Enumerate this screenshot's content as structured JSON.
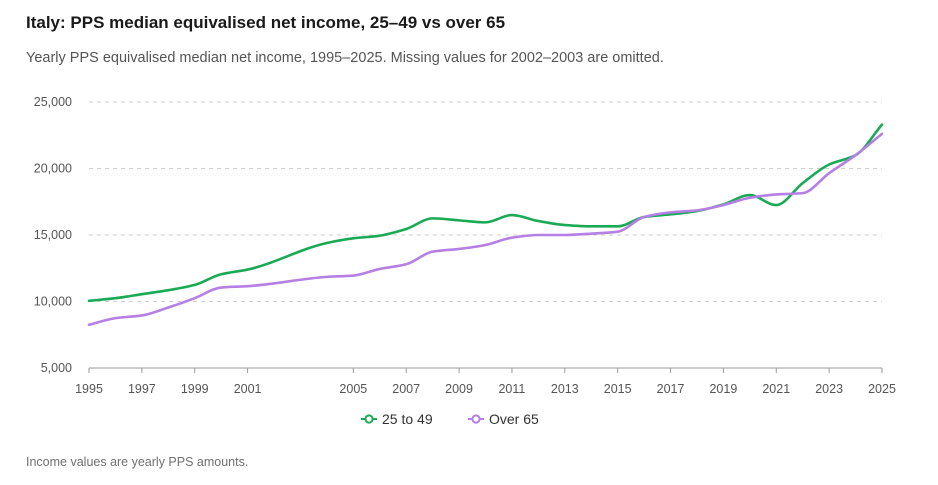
{
  "title": "Italy: PPS median equivalised net income, 25–49 vs over 65",
  "subtitle": "Yearly PPS equivalised median net income, 1995–2025. Missing values for 2002–2003 are omitted.",
  "footer": "Income values are yearly PPS amounts.",
  "chart_data": {
    "type": "line",
    "title": "Italy: PPS median equivalised net income, 25–49 vs over 65",
    "subtitle": "Yearly PPS equivalised median net income, 1995–2025. Missing values for 2002–2003 are omitted.",
    "xlabel": "",
    "ylabel": "",
    "x": [
      1995,
      1996,
      1997,
      1998,
      1999,
      2000,
      2001,
      2004,
      2005,
      2006,
      2007,
      2008,
      2009,
      2010,
      2011,
      2012,
      2013,
      2014,
      2015,
      2016,
      2017,
      2018,
      2019,
      2020,
      2021,
      2022,
      2023,
      2024,
      2025
    ],
    "series": [
      {
        "name": "25 to 49",
        "color": "#1aaa55",
        "values": [
          10050,
          10250,
          10550,
          10850,
          11250,
          12050,
          12400,
          14400,
          14750,
          14950,
          15450,
          16250,
          16100,
          15950,
          16500,
          16050,
          15750,
          15650,
          15650,
          16350,
          16550,
          16800,
          17300,
          18000,
          17250,
          18900,
          20300,
          21000,
          23300
        ]
      },
      {
        "name": "Over 65",
        "color": "#b57fe3",
        "values": [
          8250,
          8750,
          8950,
          9550,
          10250,
          11050,
          11150,
          11850,
          11950,
          12450,
          12800,
          13750,
          13950,
          14250,
          14800,
          15000,
          15000,
          15100,
          15250,
          16350,
          16700,
          16850,
          17250,
          17800,
          18050,
          18150,
          19650,
          21000,
          22600
        ]
      }
    ],
    "xticks": [
      "1995",
      "1997",
      "1999",
      "2001",
      "2005",
      "2007",
      "2009",
      "2011",
      "2013",
      "2015",
      "2017",
      "2019",
      "2021",
      "2023",
      "2025"
    ],
    "yticks": [
      "5,000",
      "10,000",
      "15,000",
      "20,000",
      "25,000"
    ],
    "ylim": [
      5000,
      25000
    ],
    "grid": "horizontal dashed",
    "legend": "bottom-center"
  }
}
